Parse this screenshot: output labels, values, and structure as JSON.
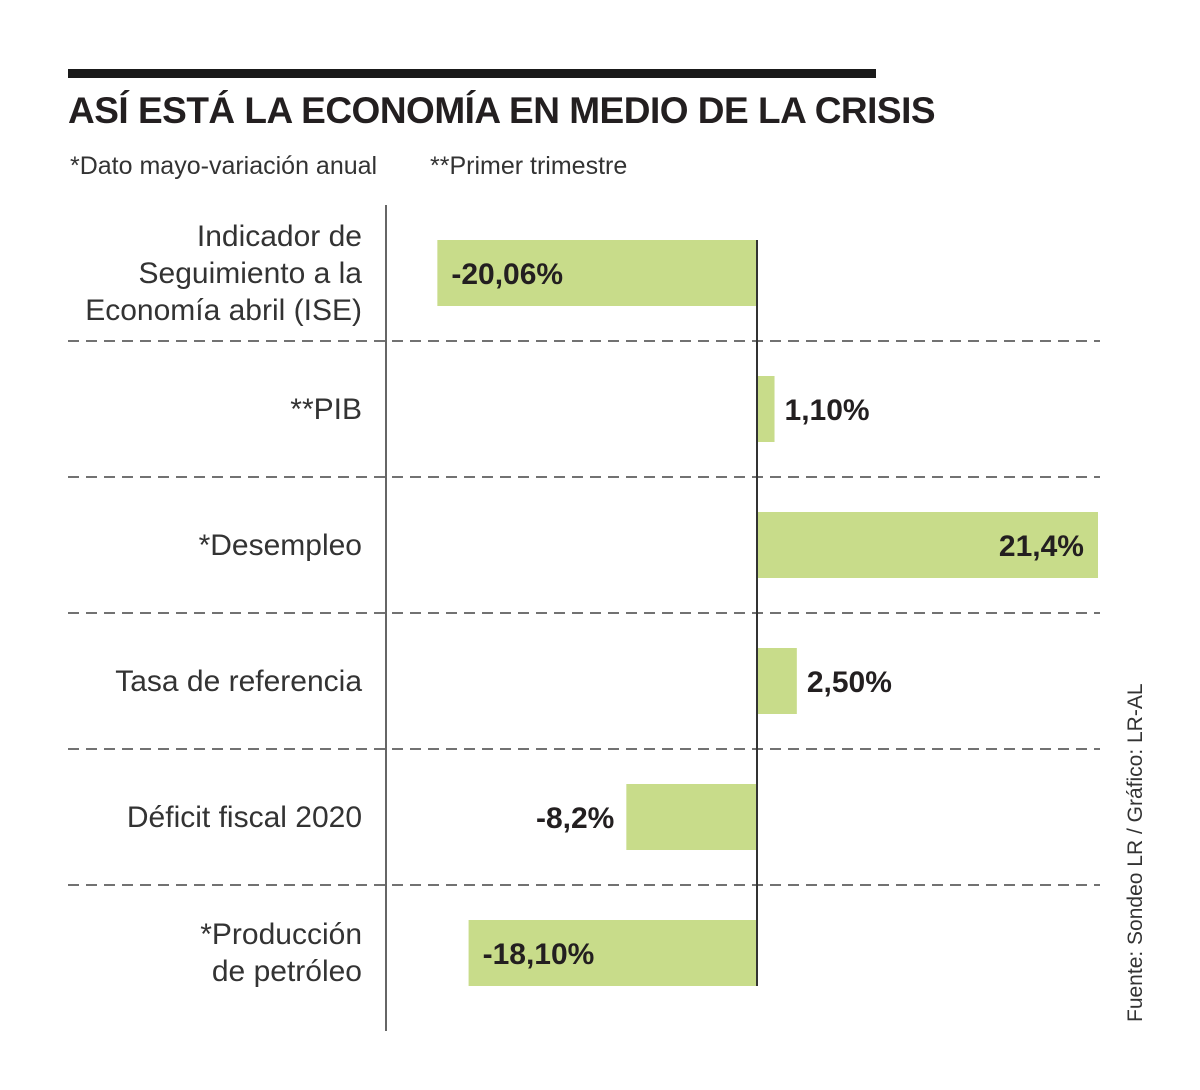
{
  "title": "ASÍ ESTÁ LA ECONOMÍA EN MEDIO DE LA CRISIS",
  "notes": [
    "*Dato mayo-variación anual",
    "**Primer trimestre"
  ],
  "source": "Fuente: Sondeo LR / Gráfico: LR-AL",
  "colors": {
    "bar": "#c8dc8a",
    "axis": "#333333",
    "text": "#231f20"
  },
  "chart_data": {
    "type": "bar",
    "orientation": "horizontal",
    "title": "ASÍ ESTÁ LA ECONOMÍA EN MEDIO DE LA CRISIS",
    "categories": [
      [
        "Indicador de",
        "Seguimiento a la",
        "Economía abril (ISE)"
      ],
      [
        "**PIB"
      ],
      [
        "*Desempleo"
      ],
      [
        "Tasa de referencia"
      ],
      [
        "Déficit fiscal 2020"
      ],
      [
        "*Producción",
        "de petróleo"
      ]
    ],
    "values": [
      -20.06,
      1.1,
      21.4,
      2.5,
      -8.2,
      -18.1
    ],
    "value_labels": [
      "-20,06%",
      "1,10%",
      "21,4%",
      "2,50%",
      "-8,2%",
      "-18,10%"
    ],
    "xlim": [
      -23,
      21.4
    ],
    "xlabel": "",
    "ylabel": ""
  }
}
